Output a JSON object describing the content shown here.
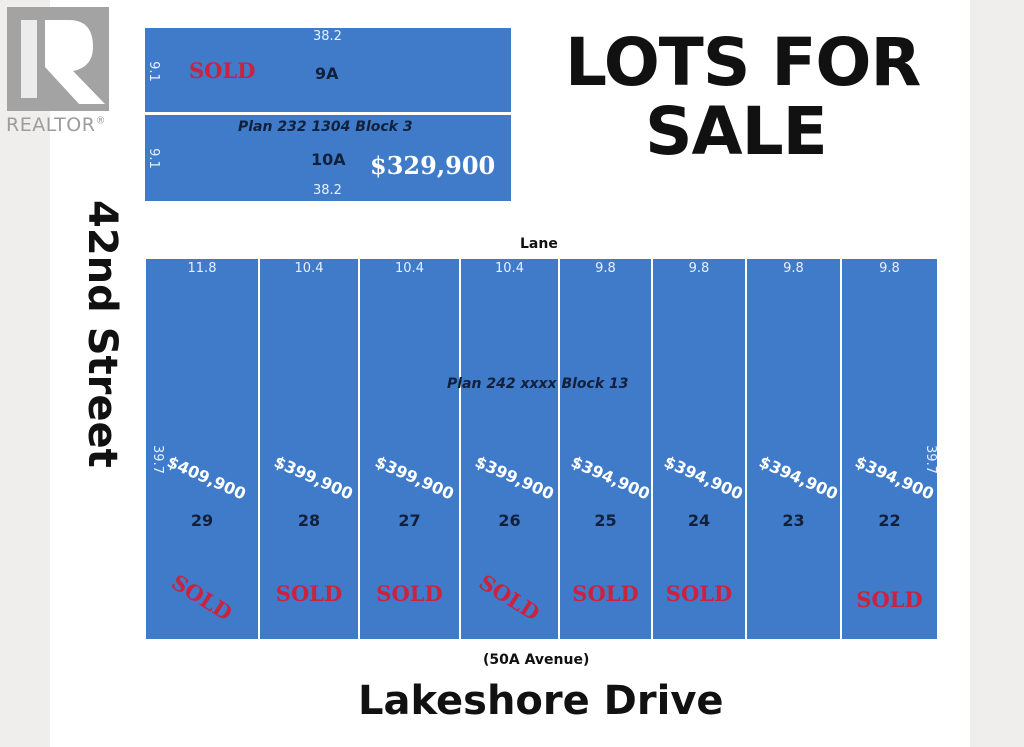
{
  "logo": {
    "text": "REALTOR",
    "mark": "®"
  },
  "title": {
    "line1": "LOTS FOR",
    "line2": "SALE"
  },
  "streets": {
    "left": "42nd Street",
    "top": "Lane",
    "bottom_sub": "(50A Avenue)",
    "bottom": "Lakeshore Drive"
  },
  "upper_block": {
    "plan": "Plan 232 1304 Block 3",
    "lots": [
      {
        "number": "9A",
        "width": "38.2",
        "depth": "9.1",
        "status": "SOLD",
        "price": ""
      },
      {
        "number": "10A",
        "width": "38.2",
        "depth": "9.1",
        "status": "",
        "price": "$329,900"
      }
    ]
  },
  "lower_block": {
    "plan": "Plan 242 xxxx Block 13",
    "depth": "39.7",
    "lots": [
      {
        "number": "29",
        "frontage": "11.8",
        "price": "$409,900",
        "status": "SOLD",
        "rotated": true
      },
      {
        "number": "28",
        "frontage": "10.4",
        "price": "$399,900",
        "status": "SOLD",
        "rotated": false
      },
      {
        "number": "27",
        "frontage": "10.4",
        "price": "$399,900",
        "status": "SOLD",
        "rotated": false
      },
      {
        "number": "26",
        "frontage": "10.4",
        "price": "$399,900",
        "status": "SOLD",
        "rotated": true
      },
      {
        "number": "25",
        "frontage": "9.8",
        "price": "$394,900",
        "status": "SOLD",
        "rotated": false
      },
      {
        "number": "24",
        "frontage": "9.8",
        "price": "$394,900",
        "status": "SOLD",
        "rotated": false
      },
      {
        "number": "23",
        "frontage": "9.8",
        "price": "$394,900",
        "status": "",
        "rotated": false
      },
      {
        "number": "22",
        "frontage": "9.8",
        "price": "$394,900",
        "status": "SOLD",
        "rotated": false
      }
    ]
  },
  "colors": {
    "lot": "#3f7bc9",
    "sold": "#c9233f",
    "logo": "#a3a3a3"
  }
}
